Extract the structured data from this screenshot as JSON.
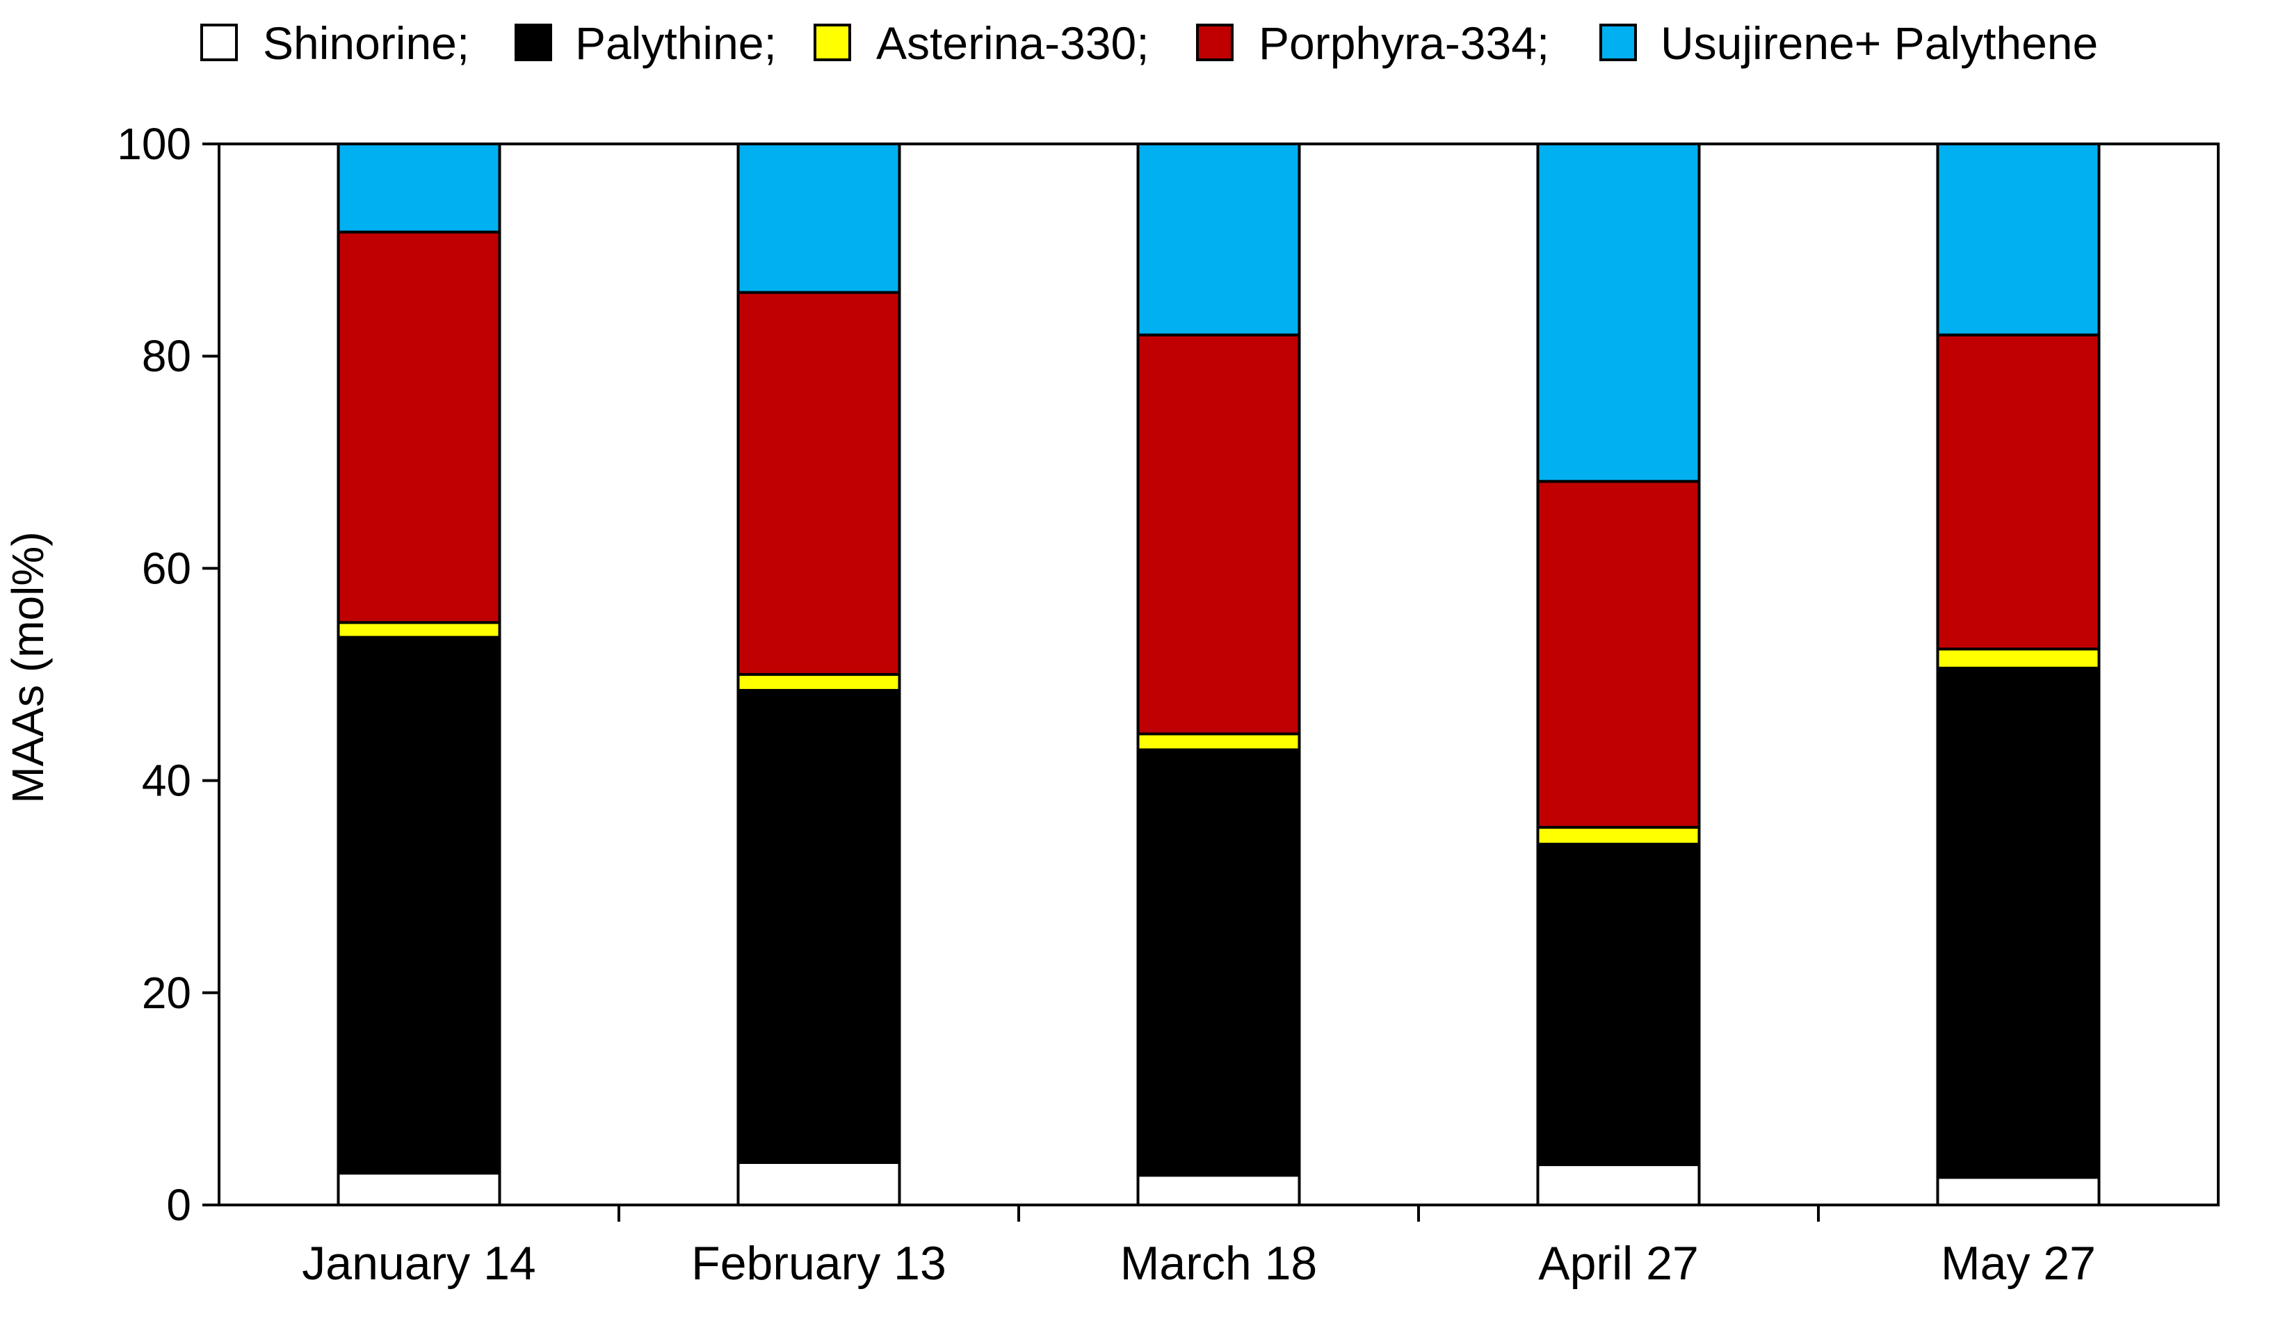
{
  "chart_data": {
    "type": "bar",
    "stacked": true,
    "ylabel": "MAAs (mol%)",
    "xlabel": "",
    "ylim": [
      0,
      100
    ],
    "yticks": [
      0,
      20,
      40,
      60,
      80,
      100
    ],
    "categories": [
      "January 14",
      "February 13",
      "March 18",
      "April 27",
      "May 27"
    ],
    "legend_position": "top",
    "legend_labels": [
      "Shinorine;",
      "Palythine;",
      "Asterina-330;",
      "Porphyra-334;",
      "Usujirene+  Palythene"
    ],
    "series": [
      {
        "name": "Shinorine",
        "color": "#ffffff",
        "values": [
          3.0,
          4.0,
          2.8,
          3.8,
          2.6
        ]
      },
      {
        "name": "Palythine",
        "color": "#000000",
        "values": [
          50.5,
          44.5,
          40.1,
          30.2,
          48.0
        ]
      },
      {
        "name": "Asterina-330",
        "color": "#ffff00",
        "values": [
          1.4,
          1.5,
          1.5,
          1.6,
          1.8
        ]
      },
      {
        "name": "Porphyra-334",
        "color": "#c00000",
        "values": [
          36.8,
          36.0,
          37.6,
          32.6,
          29.6
        ]
      },
      {
        "name": "Usujirene+ Palythene",
        "color": "#00b0f0",
        "values": [
          8.3,
          14.0,
          18.0,
          31.8,
          18.0
        ]
      }
    ]
  }
}
